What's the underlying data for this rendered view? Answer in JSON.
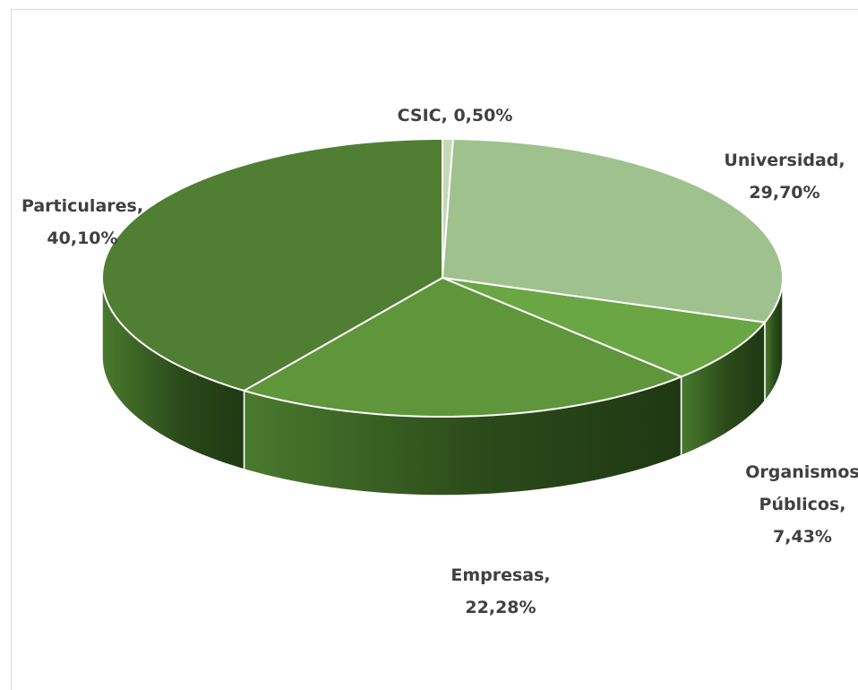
{
  "chart_data": {
    "type": "pie",
    "title": "",
    "slices": [
      {
        "name": "CSIC",
        "value": 0.5,
        "label_lines": [
          "CSIC, 0,50%"
        ],
        "color": "#c5d9b8"
      },
      {
        "name": "Universidad",
        "value": 29.7,
        "label_lines": [
          "Universidad,",
          "29,70%"
        ],
        "color": "#9fc18e"
      },
      {
        "name": "Organismos Públicos",
        "value": 7.43,
        "label_lines": [
          "Organismos",
          "Públicos,",
          "7,43%"
        ],
        "color": "#6aa644"
      },
      {
        "name": "Empresas",
        "value": 22.28,
        "label_lines": [
          "Empresas,",
          "22,28%"
        ],
        "color": "#5f953b"
      },
      {
        "name": "Particulares",
        "value": 40.1,
        "label_lines": [
          "Particulares,",
          "40,10%"
        ],
        "color": "#507e33"
      }
    ],
    "style": "3d-pie",
    "legend": "none",
    "data_labels": "category-and-value"
  }
}
